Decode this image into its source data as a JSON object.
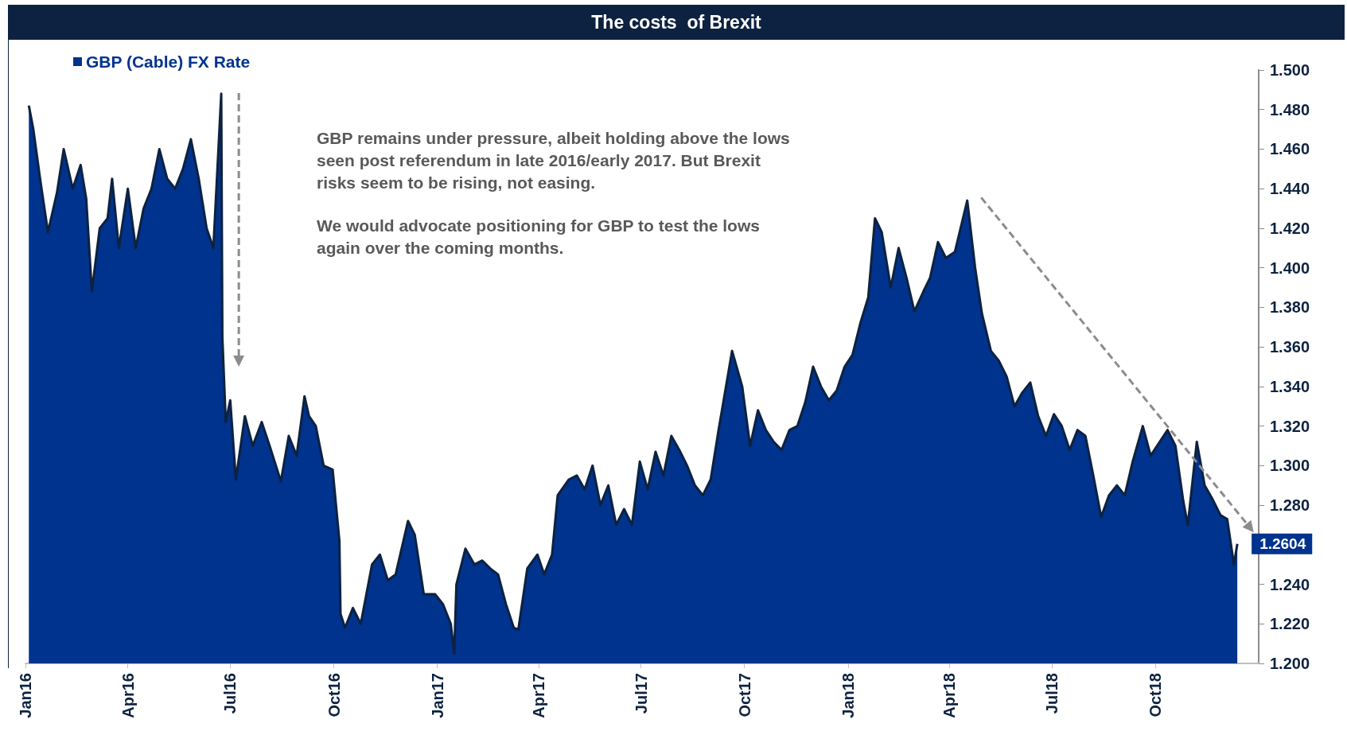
{
  "chart_data": {
    "type": "area",
    "title": "The costs  of Brexit",
    "annotations": [
      "GBP remains under pressure, albeit holding above the lows seen post referendum in late 2016/early 2017. But Brexit risks seem to be rising, not easing.",
      "We would advocate positioning for GBP to test the lows again over the coming months."
    ],
    "x": [
      "2016-01-04",
      "2016-01-08",
      "2016-01-14",
      "2016-01-21",
      "2016-01-29",
      "2016-02-04",
      "2016-02-12",
      "2016-02-19",
      "2016-02-24",
      "2016-02-29",
      "2016-03-07",
      "2016-03-14",
      "2016-03-18",
      "2016-03-24",
      "2016-04-01",
      "2016-04-08",
      "2016-04-15",
      "2016-04-22",
      "2016-04-29",
      "2016-05-06",
      "2016-05-13",
      "2016-05-20",
      "2016-05-27",
      "2016-06-03",
      "2016-06-10",
      "2016-06-16",
      "2016-06-23",
      "2016-06-24",
      "2016-06-27",
      "2016-07-01",
      "2016-07-06",
      "2016-07-14",
      "2016-07-21",
      "2016-07-29",
      "2016-08-05",
      "2016-08-15",
      "2016-08-22",
      "2016-08-29",
      "2016-09-05",
      "2016-09-09",
      "2016-09-15",
      "2016-09-22",
      "2016-09-30",
      "2016-10-06",
      "2016-10-07",
      "2016-10-11",
      "2016-10-18",
      "2016-10-25",
      "2016-11-04",
      "2016-11-11",
      "2016-11-18",
      "2016-11-25",
      "2016-12-06",
      "2016-12-12",
      "2016-12-20",
      "2016-12-30",
      "2017-01-06",
      "2017-01-13",
      "2017-01-16",
      "2017-01-18",
      "2017-01-26",
      "2017-02-03",
      "2017-02-10",
      "2017-02-17",
      "2017-02-24",
      "2017-03-03",
      "2017-03-10",
      "2017-03-14",
      "2017-03-22",
      "2017-03-31",
      "2017-04-06",
      "2017-04-13",
      "2017-04-18",
      "2017-04-28",
      "2017-05-05",
      "2017-05-12",
      "2017-05-19",
      "2017-05-26",
      "2017-06-02",
      "2017-06-09",
      "2017-06-16",
      "2017-06-23",
      "2017-06-30",
      "2017-07-07",
      "2017-07-14",
      "2017-07-21",
      "2017-07-28",
      "2017-08-04",
      "2017-08-11",
      "2017-08-18",
      "2017-08-25",
      "2017-09-01",
      "2017-09-08",
      "2017-09-20",
      "2017-09-29",
      "2017-10-06",
      "2017-10-13",
      "2017-10-20",
      "2017-10-27",
      "2017-11-03",
      "2017-11-10",
      "2017-11-17",
      "2017-11-24",
      "2017-12-01",
      "2017-12-08",
      "2017-12-15",
      "2017-12-22",
      "2017-12-29",
      "2018-01-05",
      "2018-01-12",
      "2018-01-19",
      "2018-01-25",
      "2018-01-31",
      "2018-02-08",
      "2018-02-15",
      "2018-02-22",
      "2018-03-01",
      "2018-03-09",
      "2018-03-15",
      "2018-03-22",
      "2018-03-29",
      "2018-04-06",
      "2018-04-17",
      "2018-04-24",
      "2018-04-30",
      "2018-05-08",
      "2018-05-15",
      "2018-05-22",
      "2018-05-29",
      "2018-06-05",
      "2018-06-12",
      "2018-06-19",
      "2018-06-26",
      "2018-07-03",
      "2018-07-10",
      "2018-07-17",
      "2018-07-24",
      "2018-07-31",
      "2018-08-07",
      "2018-08-14",
      "2018-08-21",
      "2018-08-28",
      "2018-09-04",
      "2018-09-11",
      "2018-09-20",
      "2018-09-27",
      "2018-10-05",
      "2018-10-12",
      "2018-10-19",
      "2018-10-26",
      "2018-10-30",
      "2018-11-07",
      "2018-11-14",
      "2018-11-21",
      "2018-11-28",
      "2018-12-04",
      "2018-12-10",
      "2018-12-13"
    ],
    "series": [
      {
        "name": "GBP (Cable) FX Rate",
        "color": "#00338d",
        "values": [
          1.482,
          1.47,
          1.445,
          1.418,
          1.438,
          1.46,
          1.44,
          1.452,
          1.435,
          1.388,
          1.42,
          1.425,
          1.445,
          1.41,
          1.44,
          1.41,
          1.43,
          1.44,
          1.46,
          1.445,
          1.44,
          1.45,
          1.465,
          1.445,
          1.42,
          1.41,
          1.488,
          1.365,
          1.322,
          1.333,
          1.293,
          1.325,
          1.31,
          1.322,
          1.31,
          1.292,
          1.315,
          1.305,
          1.335,
          1.325,
          1.32,
          1.3,
          1.298,
          1.262,
          1.225,
          1.218,
          1.228,
          1.22,
          1.25,
          1.255,
          1.242,
          1.245,
          1.272,
          1.265,
          1.235,
          1.235,
          1.23,
          1.22,
          1.205,
          1.24,
          1.258,
          1.25,
          1.252,
          1.248,
          1.245,
          1.23,
          1.218,
          1.217,
          1.248,
          1.255,
          1.245,
          1.255,
          1.285,
          1.293,
          1.295,
          1.288,
          1.3,
          1.28,
          1.29,
          1.27,
          1.278,
          1.27,
          1.302,
          1.288,
          1.307,
          1.295,
          1.315,
          1.308,
          1.3,
          1.29,
          1.285,
          1.293,
          1.318,
          1.358,
          1.34,
          1.31,
          1.328,
          1.318,
          1.312,
          1.308,
          1.318,
          1.32,
          1.332,
          1.35,
          1.34,
          1.333,
          1.338,
          1.35,
          1.356,
          1.372,
          1.385,
          1.425,
          1.418,
          1.39,
          1.41,
          1.395,
          1.378,
          1.388,
          1.395,
          1.413,
          1.405,
          1.408,
          1.434,
          1.4,
          1.377,
          1.358,
          1.353,
          1.345,
          1.33,
          1.337,
          1.342,
          1.325,
          1.315,
          1.326,
          1.32,
          1.308,
          1.318,
          1.315,
          1.295,
          1.274,
          1.285,
          1.29,
          1.285,
          1.302,
          1.32,
          1.305,
          1.312,
          1.318,
          1.31,
          1.282,
          1.27,
          1.312,
          1.29,
          1.283,
          1.275,
          1.273,
          1.25,
          1.2604
        ],
        "value_labels": [
          null,
          null,
          null,
          null,
          null,
          null,
          null,
          null,
          null,
          null,
          null,
          null,
          null,
          null,
          null,
          null,
          null,
          null,
          null,
          null,
          null,
          null,
          null,
          null,
          null,
          null,
          null,
          null,
          null,
          null,
          null,
          null,
          null,
          null,
          null,
          null,
          null,
          null,
          null,
          null,
          null,
          null,
          null,
          null,
          null,
          null,
          null,
          null,
          null,
          null,
          null,
          null,
          null,
          null,
          null,
          null,
          null,
          null,
          null,
          null,
          null,
          null,
          null,
          null,
          null,
          null,
          null,
          null,
          null,
          null,
          null,
          null,
          null,
          null,
          null,
          null,
          null,
          null,
          null,
          null,
          null,
          null,
          null,
          null,
          null,
          null,
          null,
          null,
          null,
          null,
          null,
          null,
          null,
          null,
          null,
          null,
          null,
          null,
          null,
          null,
          null,
          null,
          null,
          null,
          null,
          null,
          null,
          null,
          null,
          null,
          null,
          null,
          null,
          null,
          null,
          null,
          null,
          null,
          null,
          null,
          null,
          null,
          null,
          null,
          null,
          null,
          null,
          null,
          null,
          null,
          null,
          null,
          null,
          null,
          null,
          null,
          null,
          null,
          null,
          null,
          null,
          null,
          null,
          null,
          null,
          null,
          null,
          null,
          null,
          null,
          null,
          null,
          null,
          null,
          null,
          null,
          null,
          "1.2604"
        ]
      }
    ],
    "xlim": [
      "2016-01-01",
      "2019-01-01"
    ],
    "xticks": [
      {
        "value": "2016-01-01",
        "label": "Jan16"
      },
      {
        "value": "2016-04-01",
        "label": "Apr16"
      },
      {
        "value": "2016-07-01",
        "label": "Jul16"
      },
      {
        "value": "2016-10-01",
        "label": "Oct16"
      },
      {
        "value": "2017-01-01",
        "label": "Jan17"
      },
      {
        "value": "2017-04-01",
        "label": "Apr17"
      },
      {
        "value": "2017-07-01",
        "label": "Jul17"
      },
      {
        "value": "2017-10-01",
        "label": "Oct17"
      },
      {
        "value": "2018-01-01",
        "label": "Jan18"
      },
      {
        "value": "2018-04-01",
        "label": "Apr18"
      },
      {
        "value": "2018-07-01",
        "label": "Jul18"
      },
      {
        "value": "2018-10-01",
        "label": "Oct18"
      }
    ],
    "ylim": [
      1.2,
      1.5
    ],
    "yticks": [
      {
        "value": 1.2,
        "label": "1.200"
      },
      {
        "value": 1.22,
        "label": "1.220"
      },
      {
        "value": 1.24,
        "label": "1.240"
      },
      {
        "value": 1.26,
        "label": null
      },
      {
        "value": 1.28,
        "label": "1.280"
      },
      {
        "value": 1.3,
        "label": "1.300"
      },
      {
        "value": 1.32,
        "label": "1.320"
      },
      {
        "value": 1.34,
        "label": "1.340"
      },
      {
        "value": 1.36,
        "label": "1.360"
      },
      {
        "value": 1.38,
        "label": "1.380"
      },
      {
        "value": 1.4,
        "label": "1.400"
      },
      {
        "value": 1.42,
        "label": "1.420"
      },
      {
        "value": 1.44,
        "label": "1.440"
      },
      {
        "value": 1.46,
        "label": "1.460"
      },
      {
        "value": 1.48,
        "label": "1.480"
      },
      {
        "value": 1.5,
        "label": "1.500"
      }
    ],
    "grid": false,
    "legend": "top left",
    "marker": "none",
    "line_style": "solid"
  }
}
